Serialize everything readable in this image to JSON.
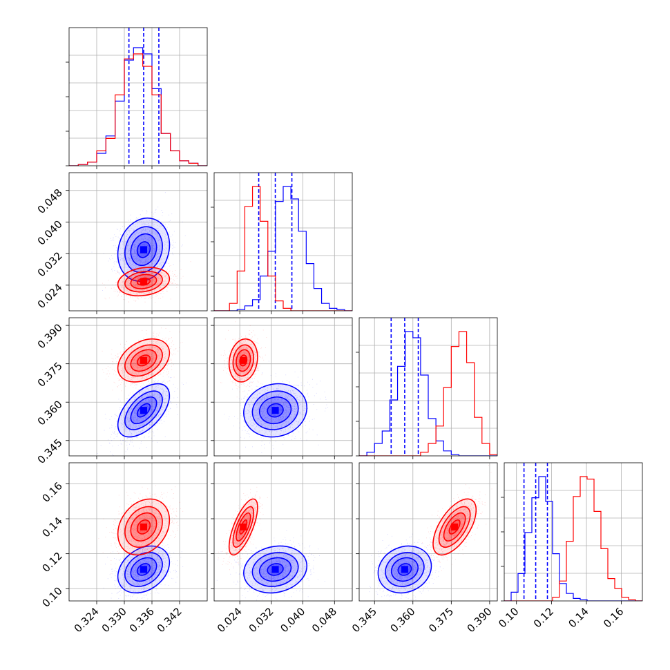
{
  "chart_data": {
    "type": "corner",
    "grid": true,
    "parameters": [
      {
        "range": [
          0.318,
          0.348
        ],
        "ticks": [
          "0.324",
          "0.330",
          "0.336",
          "0.342"
        ]
      },
      {
        "range": [
          0.0175,
          0.0525
        ],
        "ticks": [
          "0.024",
          "0.032",
          "0.040",
          "0.048"
        ]
      },
      {
        "range": [
          0.339,
          0.393
        ],
        "ticks": [
          "0.345",
          "0.360",
          "0.375",
          "0.390"
        ]
      },
      {
        "range": [
          0.093,
          0.172
        ],
        "ticks": [
          "0.10",
          "0.12",
          "0.14",
          "0.16"
        ]
      }
    ],
    "series": [
      {
        "color": "#0000ff",
        "means": [
          0.3342,
          0.033,
          0.3568,
          0.111
        ],
        "sigmas": [
          0.0028,
          0.004,
          0.0052,
          0.0067
        ],
        "correlations": [
          [
            0,
            1,
            0.15
          ],
          [
            0,
            2,
            0.55
          ],
          [
            0,
            3,
            0.3
          ],
          [
            1,
            2,
            0.1
          ],
          [
            1,
            3,
            0.15
          ],
          [
            2,
            3,
            0.15
          ]
        ],
        "quantiles": [
          [
            0.331,
            0.3342,
            0.3375
          ],
          [
            0.0288,
            0.033,
            0.0372
          ],
          [
            0.3515,
            0.3568,
            0.3621
          ],
          [
            0.1043,
            0.111,
            0.1177
          ]
        ],
        "histograms": [
          [
            0,
            1,
            3,
            10,
            24,
            52,
            85,
            95,
            90,
            62,
            26,
            12,
            4,
            2,
            0
          ],
          [
            0,
            0,
            0,
            1,
            4,
            9,
            28,
            48,
            88,
            100,
            90,
            64,
            38,
            18,
            6,
            2,
            1,
            0
          ],
          [
            0,
            3,
            10,
            20,
            45,
            72,
            100,
            95,
            65,
            30,
            12,
            4,
            1,
            0,
            0,
            0,
            0,
            0
          ],
          [
            0,
            7,
            22,
            55,
            83,
            100,
            80,
            38,
            14,
            6,
            2,
            1,
            0,
            0,
            0,
            0,
            0,
            0,
            0,
            0
          ]
        ]
      },
      {
        "color": "#ff0000",
        "means": [
          0.3342,
          0.0249,
          0.3763,
          0.1353
        ],
        "sigmas": [
          0.0028,
          0.0018,
          0.0042,
          0.008
        ],
        "correlations": [
          [
            0,
            1,
            0.2
          ],
          [
            0,
            2,
            0.35
          ],
          [
            0,
            3,
            0.25
          ],
          [
            1,
            2,
            0.15
          ],
          [
            1,
            3,
            0.7
          ],
          [
            2,
            3,
            0.6
          ]
        ],
        "histograms": [
          [
            0,
            1,
            3,
            12,
            22,
            57,
            86,
            90,
            80,
            57,
            26,
            12,
            4,
            2,
            0
          ],
          [
            0,
            0,
            6,
            32,
            84,
            100,
            72,
            28,
            8,
            2,
            0,
            0,
            0,
            0,
            0,
            0,
            0,
            0
          ],
          [
            0,
            0,
            0,
            0,
            0,
            0,
            0,
            0,
            3,
            10,
            24,
            55,
            88,
            100,
            75,
            31,
            10,
            1
          ],
          [
            0,
            0,
            0,
            0,
            0,
            0,
            0,
            3,
            16,
            48,
            84,
            100,
            98,
            72,
            42,
            18,
            10,
            3,
            1,
            0
          ]
        ]
      }
    ],
    "histogram_ranges": [
      [
        0.3185,
        0.3475
      ],
      [
        0.0185,
        0.049
      ],
      [
        0.338,
        0.392
      ],
      [
        0.0915,
        0.17
      ]
    ]
  }
}
